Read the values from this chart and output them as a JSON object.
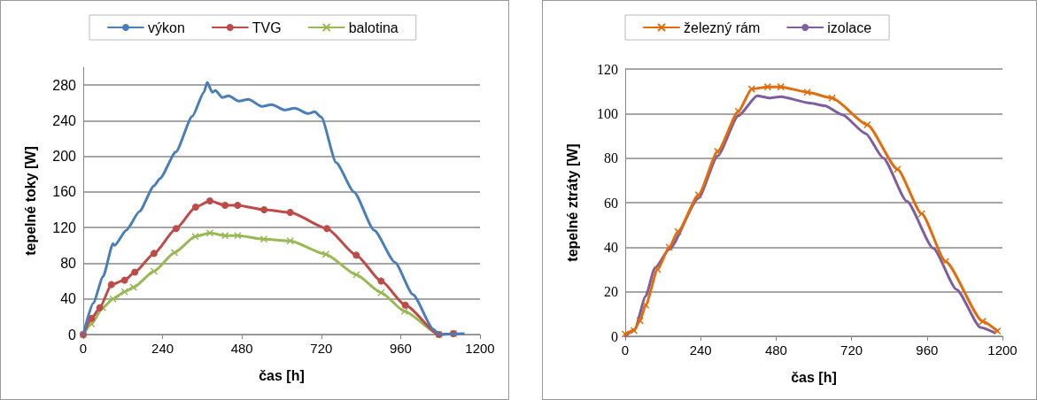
{
  "chart_data": [
    {
      "type": "line",
      "xlabel": "čas [h]",
      "ylabel": "tepelné toky [W]",
      "xlim": [
        0,
        1200
      ],
      "xticks": [
        0,
        240,
        480,
        720,
        960,
        1200
      ],
      "ylim": [
        0,
        300
      ],
      "yticks": [
        0,
        40,
        80,
        120,
        160,
        200,
        240,
        280
      ],
      "grid": "y",
      "legend": "top",
      "line_style": "solid",
      "series": [
        {
          "name": "výkon",
          "color": "#4a7ebb",
          "marker": "none",
          "x": [
            0,
            30,
            60,
            90,
            95,
            130,
            170,
            214,
            232,
            280,
            330,
            365,
            375,
            390,
            400,
            420,
            440,
            470,
            500,
            540,
            570,
            610,
            640,
            680,
            700,
            720,
            765,
            819,
            880,
            943,
            997,
            1059,
            1076,
            1150
          ],
          "values": [
            0,
            35,
            65,
            102,
            100,
            117,
            138,
            167,
            175,
            205,
            245,
            272,
            283,
            272,
            274,
            266,
            268,
            262,
            264,
            256,
            258,
            252,
            254,
            248,
            250,
            244,
            193,
            160,
            117,
            81,
            45,
            6,
            0,
            1
          ]
        },
        {
          "name": "TVG",
          "color": "#be4b48",
          "marker": "circle",
          "x": [
            0,
            25,
            50,
            85,
            125,
            156,
            214,
            281,
            340,
            383,
            429,
            467,
            547,
            626,
            737,
            826,
            901,
            974,
            1076,
            1120
          ],
          "values": [
            0,
            18,
            30,
            56,
            61,
            70,
            91,
            119,
            143,
            150,
            145,
            145,
            140,
            137,
            119,
            89,
            60,
            33,
            0,
            1
          ]
        },
        {
          "name": "balotina",
          "color": "#98b954",
          "marker": "cross",
          "x": [
            0,
            25,
            59,
            90,
            125,
            152,
            214,
            276,
            339,
            383,
            429,
            467,
            546,
            626,
            734,
            826,
            901,
            972,
            1076,
            1120
          ],
          "values": [
            0,
            12,
            30,
            40,
            48,
            53,
            71,
            92,
            110,
            114,
            111,
            111,
            107,
            105,
            90,
            67,
            47,
            26,
            0,
            1
          ]
        }
      ]
    },
    {
      "type": "line",
      "xlabel": "čas [h]",
      "ylabel": "tepelné ztráty [W]",
      "xlim": [
        0,
        1200
      ],
      "xticks": [
        0,
        240,
        480,
        720,
        960,
        1200
      ],
      "ylim": [
        0,
        120
      ],
      "yticks": [
        0,
        20,
        40,
        60,
        80,
        100,
        120
      ],
      "grid": "y",
      "legend": "top",
      "line_style": "solid",
      "series": [
        {
          "name": "železný rám",
          "color": "#e46c0a",
          "marker": "cross",
          "x": [
            0,
            28,
            47,
            65,
            103,
            140,
            168,
            233,
            294,
            360,
            402,
            453,
            495,
            579,
            658,
            770,
            866,
            943,
            1019,
            1137,
            1184
          ],
          "values": [
            1,
            2.6,
            7,
            14,
            30,
            40,
            47,
            63.5,
            83,
            101,
            111,
            112,
            112,
            109.6,
            107,
            95,
            75,
            55,
            33.6,
            6.7,
            2.4
          ]
        },
        {
          "name": "izolace",
          "color": "#7d5fa0",
          "marker": "none",
          "x": [
            0,
            30,
            65,
            94,
            140,
            233,
            294,
            360,
            420,
            460,
            495,
            588,
            635,
            690,
            765,
            821,
            896,
            980,
            1054,
            1130,
            1175
          ],
          "values": [
            0,
            3,
            18,
            30.5,
            39,
            62,
            81,
            99,
            108,
            107,
            107.6,
            104.7,
            103.5,
            99.5,
            91,
            80,
            60.6,
            39.5,
            21,
            4,
            1.6
          ]
        }
      ]
    }
  ]
}
